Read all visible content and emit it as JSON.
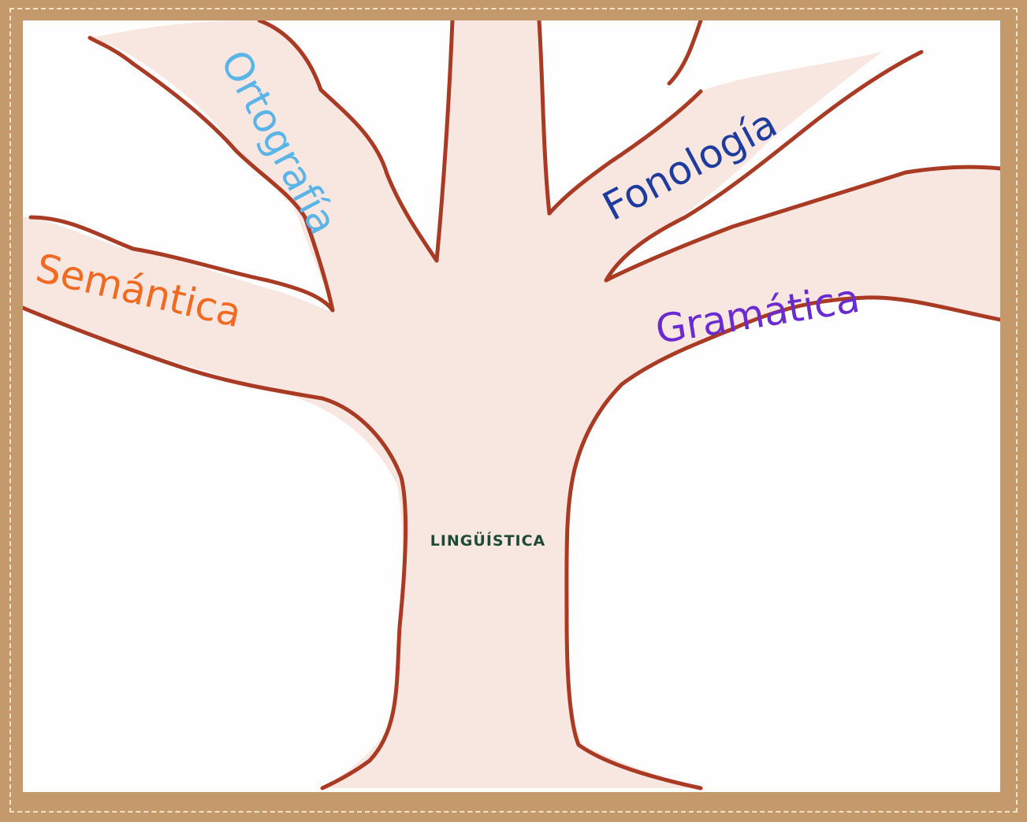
{
  "diagram": {
    "trunk_label": "LINGÜÍSTICA",
    "branches": [
      {
        "label": "Ortografía",
        "color": "#5ab4e8"
      },
      {
        "label": "Fonología",
        "color": "#1d3c9e"
      },
      {
        "label": "Semántica",
        "color": "#f06a22"
      },
      {
        "label": "Gramática",
        "color": "#6a2bd0"
      }
    ],
    "outline_color": "#a93a24",
    "fill_color": "#f8e6e0",
    "frame_color": "#c49a6c"
  }
}
